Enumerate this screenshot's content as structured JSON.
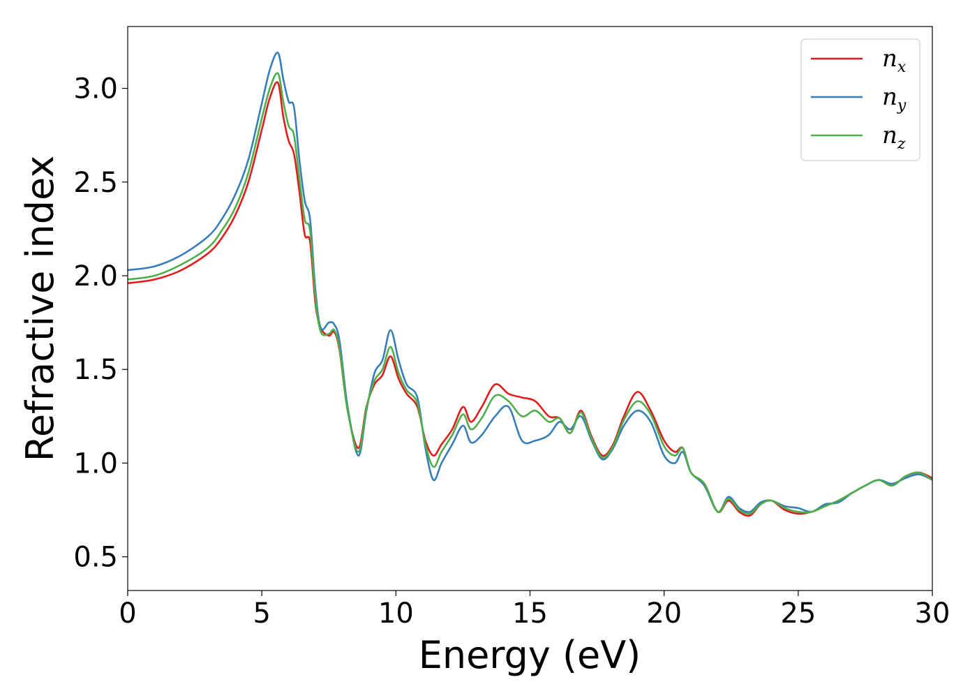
{
  "chart_data": {
    "type": "line",
    "title": "",
    "xlabel": "Energy (eV)",
    "ylabel": "Refractive index",
    "xlim": [
      0,
      30
    ],
    "ylim": [
      0.32,
      3.33
    ],
    "xticks": [
      0,
      5,
      10,
      15,
      20,
      25,
      30
    ],
    "yticks": [
      0.5,
      1.0,
      1.5,
      2.0,
      2.5,
      3.0
    ],
    "xtick_labels": [
      "0",
      "5",
      "10",
      "15",
      "20",
      "25",
      "30"
    ],
    "ytick_labels": [
      "0.5",
      "1.0",
      "1.5",
      "2.0",
      "2.5",
      "3.0"
    ],
    "grid": false,
    "legend_position": "top-right",
    "series": [
      {
        "name": "n",
        "subscript": "x",
        "color": "#e41a1c",
        "x": [
          0,
          1,
          2,
          3,
          3.5,
          4,
          4.5,
          5,
          5.3,
          5.6,
          5.8,
          6.0,
          6.2,
          6.4,
          6.6,
          6.8,
          7.0,
          7.2,
          7.5,
          7.7,
          7.9,
          8.2,
          8.6,
          8.9,
          9.2,
          9.5,
          9.8,
          10.1,
          10.4,
          10.8,
          11.1,
          11.4,
          11.7,
          12.1,
          12.5,
          12.8,
          13.2,
          13.7,
          14.2,
          14.7,
          15.2,
          15.7,
          16.1,
          16.5,
          16.9,
          17.3,
          17.7,
          18.1,
          18.5,
          19.0,
          19.5,
          20.0,
          20.4,
          20.7,
          21.0,
          21.5,
          22.0,
          22.4,
          22.8,
          23.2,
          23.6,
          24.0,
          24.5,
          25.0,
          25.5,
          26.0,
          26.5,
          27.0,
          27.5,
          28.0,
          28.5,
          29.0,
          29.5,
          30.0
        ],
        "y": [
          1.96,
          1.98,
          2.03,
          2.12,
          2.2,
          2.32,
          2.5,
          2.78,
          2.95,
          3.03,
          2.85,
          2.72,
          2.65,
          2.45,
          2.22,
          2.18,
          1.85,
          1.72,
          1.68,
          1.7,
          1.6,
          1.28,
          1.08,
          1.3,
          1.42,
          1.47,
          1.57,
          1.45,
          1.37,
          1.3,
          1.12,
          1.04,
          1.1,
          1.18,
          1.3,
          1.22,
          1.3,
          1.42,
          1.37,
          1.35,
          1.33,
          1.25,
          1.24,
          1.16,
          1.28,
          1.14,
          1.04,
          1.1,
          1.25,
          1.38,
          1.28,
          1.12,
          1.06,
          1.08,
          0.95,
          0.89,
          0.74,
          0.8,
          0.74,
          0.72,
          0.78,
          0.8,
          0.75,
          0.73,
          0.74,
          0.77,
          0.8,
          0.84,
          0.88,
          0.91,
          0.88,
          0.93,
          0.95,
          0.92
        ]
      },
      {
        "name": "n",
        "subscript": "y",
        "color": "#377eb8",
        "x": [
          0,
          1,
          2,
          3,
          3.5,
          4,
          4.5,
          5,
          5.3,
          5.6,
          5.8,
          6.0,
          6.2,
          6.4,
          6.6,
          6.8,
          7.0,
          7.2,
          7.5,
          7.7,
          7.9,
          8.2,
          8.6,
          8.9,
          9.2,
          9.5,
          9.8,
          10.1,
          10.4,
          10.8,
          11.1,
          11.4,
          11.7,
          12.1,
          12.5,
          12.8,
          13.2,
          13.7,
          14.2,
          14.7,
          15.2,
          15.7,
          16.1,
          16.5,
          16.9,
          17.3,
          17.7,
          18.1,
          18.5,
          19.0,
          19.5,
          20.0,
          20.4,
          20.7,
          21.0,
          21.5,
          22.0,
          22.4,
          22.8,
          23.2,
          23.6,
          24.0,
          24.5,
          25.0,
          25.5,
          26.0,
          26.5,
          27.0,
          27.5,
          28.0,
          28.5,
          29.0,
          29.5,
          30.0
        ],
        "y": [
          2.03,
          2.05,
          2.11,
          2.21,
          2.3,
          2.43,
          2.62,
          2.92,
          3.1,
          3.19,
          3.05,
          2.93,
          2.9,
          2.62,
          2.4,
          2.3,
          1.92,
          1.72,
          1.75,
          1.74,
          1.65,
          1.3,
          1.04,
          1.28,
          1.48,
          1.55,
          1.71,
          1.55,
          1.42,
          1.35,
          1.08,
          0.91,
          1.0,
          1.1,
          1.2,
          1.11,
          1.15,
          1.25,
          1.3,
          1.12,
          1.12,
          1.15,
          1.22,
          1.18,
          1.25,
          1.12,
          1.02,
          1.08,
          1.2,
          1.28,
          1.22,
          1.04,
          1.0,
          1.06,
          0.95,
          0.88,
          0.74,
          0.82,
          0.76,
          0.74,
          0.79,
          0.8,
          0.77,
          0.76,
          0.74,
          0.78,
          0.79,
          0.84,
          0.88,
          0.91,
          0.89,
          0.92,
          0.94,
          0.91
        ]
      },
      {
        "name": "n",
        "subscript": "z",
        "color": "#4daf4a",
        "x": [
          0,
          1,
          2,
          3,
          3.5,
          4,
          4.5,
          5,
          5.3,
          5.6,
          5.8,
          6.0,
          6.2,
          6.4,
          6.6,
          6.8,
          7.0,
          7.2,
          7.5,
          7.7,
          7.9,
          8.2,
          8.6,
          8.9,
          9.2,
          9.5,
          9.8,
          10.1,
          10.4,
          10.8,
          11.1,
          11.4,
          11.7,
          12.1,
          12.5,
          12.8,
          13.2,
          13.7,
          14.2,
          14.7,
          15.2,
          15.7,
          16.1,
          16.5,
          16.9,
          17.3,
          17.7,
          18.1,
          18.5,
          19.0,
          19.5,
          20.0,
          20.4,
          20.7,
          21.0,
          21.5,
          22.0,
          22.4,
          22.8,
          23.2,
          23.6,
          24.0,
          24.5,
          25.0,
          25.5,
          26.0,
          26.5,
          27.0,
          27.5,
          28.0,
          28.5,
          29.0,
          29.5,
          30.0
        ],
        "y": [
          1.98,
          2.0,
          2.06,
          2.15,
          2.24,
          2.36,
          2.55,
          2.84,
          3.0,
          3.08,
          2.93,
          2.8,
          2.75,
          2.52,
          2.3,
          2.24,
          1.88,
          1.7,
          1.69,
          1.71,
          1.61,
          1.28,
          1.06,
          1.29,
          1.44,
          1.5,
          1.62,
          1.48,
          1.39,
          1.32,
          1.1,
          0.98,
          1.06,
          1.15,
          1.26,
          1.18,
          1.24,
          1.36,
          1.33,
          1.25,
          1.28,
          1.22,
          1.24,
          1.16,
          1.27,
          1.13,
          1.03,
          1.09,
          1.23,
          1.33,
          1.26,
          1.09,
          1.04,
          1.08,
          0.95,
          0.89,
          0.74,
          0.81,
          0.75,
          0.73,
          0.78,
          0.8,
          0.76,
          0.74,
          0.74,
          0.77,
          0.8,
          0.84,
          0.88,
          0.91,
          0.88,
          0.93,
          0.95,
          0.91
        ]
      }
    ]
  }
}
